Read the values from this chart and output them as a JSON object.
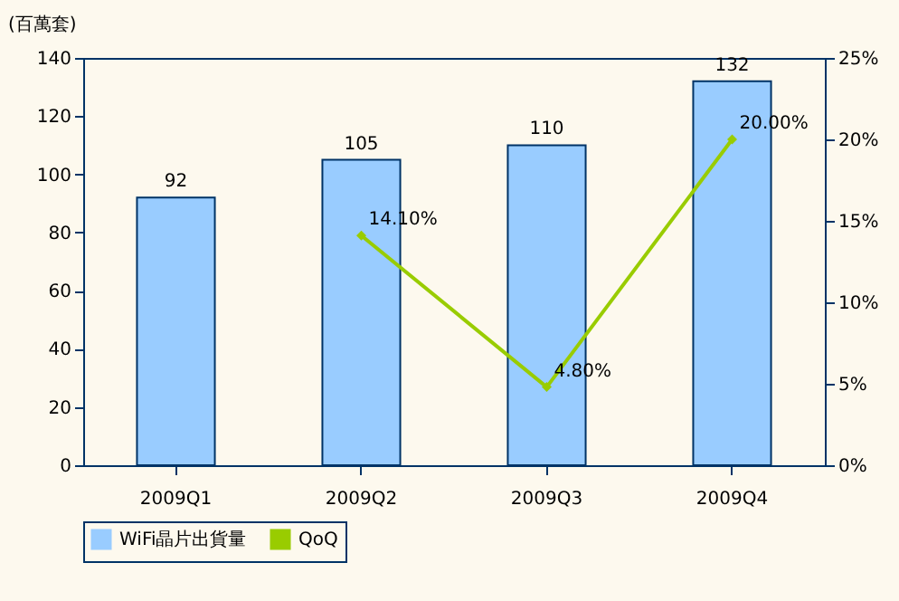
{
  "chart_data": {
    "type": "bar",
    "ylabel": "(百萬套)",
    "categories": [
      "2009Q1",
      "2009Q2",
      "2009Q3",
      "2009Q4"
    ],
    "series": [
      {
        "name": "WiFi晶片出貨量",
        "color": "#99ccff",
        "values": [
          92,
          105,
          110,
          132
        ],
        "value_labels": [
          "92",
          "105",
          "110",
          "132"
        ]
      },
      {
        "name": "QoQ",
        "type": "line",
        "axis": "y2",
        "color": "#99cc00",
        "values": [
          null,
          14.1,
          4.8,
          20.0
        ],
        "value_labels": [
          null,
          "14.10%",
          "4.80%",
          "20.00%"
        ]
      }
    ],
    "ylim": [
      0,
      140
    ],
    "yticks": [
      0,
      20,
      40,
      60,
      80,
      100,
      120,
      140
    ],
    "y2lim": [
      0,
      25
    ],
    "y2ticks": [
      {
        "value": 0,
        "label": "0%"
      },
      {
        "value": 5,
        "label": "5%"
      },
      {
        "value": 10,
        "label": "10%"
      },
      {
        "value": 15,
        "label": "15%"
      },
      {
        "value": 20,
        "label": "20%"
      },
      {
        "value": 25,
        "label": "25%"
      }
    ],
    "grid": false,
    "legend": "bottom",
    "marker": "diamond",
    "line_style": "solid"
  }
}
